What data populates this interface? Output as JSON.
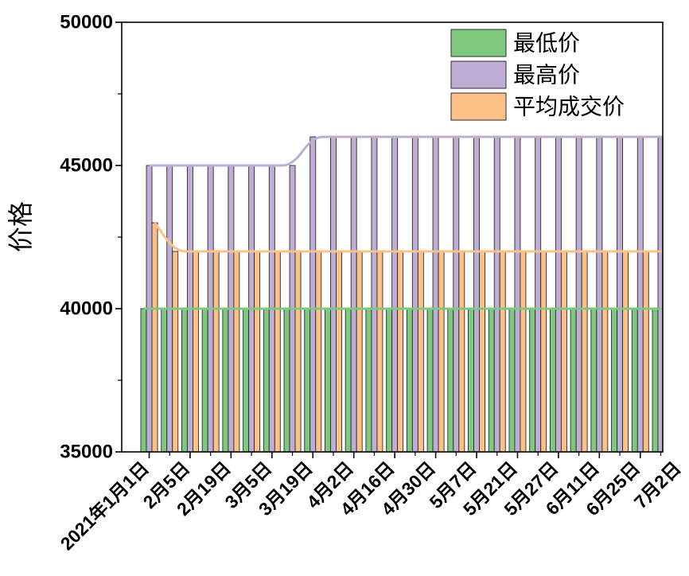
{
  "chart_data": {
    "type": "bar",
    "title": "",
    "xlabel": "",
    "ylabel": "价格",
    "ylim": [
      35000,
      50000
    ],
    "yticks": [
      35000,
      40000,
      45000,
      50000
    ],
    "categories": [
      "2021年1月1日",
      "",
      "2月5日",
      "",
      "2月19日",
      "",
      "3月5日",
      "",
      "3月19日",
      "",
      "4月2日",
      "",
      "4月16日",
      "",
      "4月30日",
      "",
      "5月7日",
      "",
      "5月21日",
      "",
      "5月27日",
      "",
      "6月11日",
      "",
      "6月25日",
      "",
      "7月2日"
    ],
    "series": [
      {
        "name": "最低价",
        "color": "#7FC97F",
        "values": [
          40000,
          40000,
          40000,
          40000,
          40000,
          40000,
          40000,
          40000,
          40000,
          40000,
          40000,
          40000,
          40000,
          40000,
          40000,
          40000,
          40000,
          40000,
          40000,
          40000,
          40000,
          40000,
          40000,
          40000,
          40000,
          40000,
          40000
        ]
      },
      {
        "name": "最高价",
        "color": "#BEAED4",
        "values": [
          45000,
          45000,
          45000,
          45000,
          45000,
          45000,
          45000,
          45000,
          46000,
          46000,
          46000,
          46000,
          46000,
          46000,
          46000,
          46000,
          46000,
          46000,
          46000,
          46000,
          46000,
          46000,
          46000,
          46000,
          46000,
          46000,
          46000
        ]
      },
      {
        "name": "平均成交价",
        "color": "#FDC086",
        "values": [
          43000,
          42000,
          42000,
          42000,
          42000,
          42000,
          42000,
          42000,
          42000,
          42000,
          42000,
          42000,
          42000,
          42000,
          42000,
          42000,
          42000,
          42000,
          42000,
          42000,
          42000,
          42000,
          42000,
          42000,
          42000,
          42000,
          42000
        ]
      }
    ],
    "line_overlay": true,
    "legend": "top-right",
    "grid": false
  }
}
